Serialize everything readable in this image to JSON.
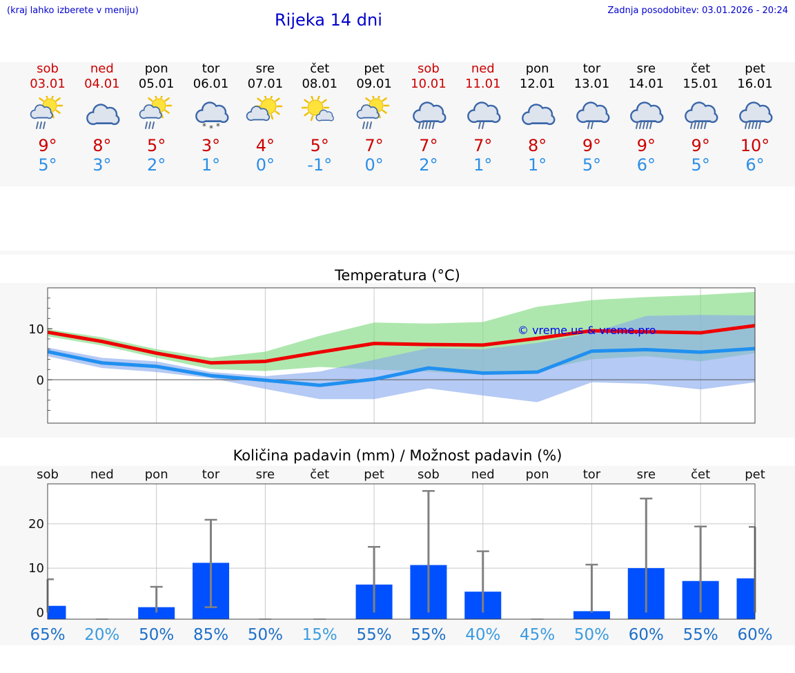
{
  "header": {
    "hint": "(kraj lahko izberete v meniju)",
    "title": "Rijeka 14 dni",
    "updated": "Zadnja posodobitev: 03.01.2026 - 20:24"
  },
  "colors": {
    "weekend": "#cc0000",
    "weekday": "#000000",
    "tmax": "#cc0000",
    "tmin": "#2b8ee6"
  },
  "days": [
    {
      "name": "sob",
      "date": "03.01",
      "weekend": true,
      "icon": "sun-cloud-rain",
      "tmax": "9°",
      "tmin": "5°"
    },
    {
      "name": "ned",
      "date": "04.01",
      "weekend": true,
      "icon": "cloud",
      "tmax": "8°",
      "tmin": "3°"
    },
    {
      "name": "pon",
      "date": "05.01",
      "weekend": false,
      "icon": "sun-cloud-rain",
      "tmax": "5°",
      "tmin": "2°"
    },
    {
      "name": "tor",
      "date": "06.01",
      "weekend": false,
      "icon": "cloud-snow",
      "tmax": "3°",
      "tmin": "1°"
    },
    {
      "name": "sre",
      "date": "07.01",
      "weekend": false,
      "icon": "sun-cloud",
      "tmax": "4°",
      "tmin": "0°"
    },
    {
      "name": "čet",
      "date": "08.01",
      "weekend": false,
      "icon": "sun-small-cloud",
      "tmax": "5°",
      "tmin": "-1°"
    },
    {
      "name": "pet",
      "date": "09.01",
      "weekend": false,
      "icon": "sun-cloud-rain",
      "tmax": "7°",
      "tmin": "0°"
    },
    {
      "name": "sob",
      "date": "10.01",
      "weekend": true,
      "icon": "cloud-heavy-rain",
      "tmax": "7°",
      "tmin": "2°"
    },
    {
      "name": "ned",
      "date": "11.01",
      "weekend": true,
      "icon": "cloud-rain",
      "tmax": "7°",
      "tmin": "1°"
    },
    {
      "name": "pon",
      "date": "12.01",
      "weekend": false,
      "icon": "cloud",
      "tmax": "8°",
      "tmin": "1°"
    },
    {
      "name": "tor",
      "date": "13.01",
      "weekend": false,
      "icon": "cloud-rain",
      "tmax": "9°",
      "tmin": "5°"
    },
    {
      "name": "sre",
      "date": "14.01",
      "weekend": false,
      "icon": "cloud-heavy-rain",
      "tmax": "9°",
      "tmin": "6°"
    },
    {
      "name": "čet",
      "date": "15.01",
      "weekend": false,
      "icon": "cloud-heavy-rain",
      "tmax": "9°",
      "tmin": "5°"
    },
    {
      "name": "pet",
      "date": "16.01",
      "weekend": false,
      "icon": "cloud-heavy-rain",
      "tmax": "10°",
      "tmin": "6°"
    }
  ],
  "chart_data": [
    {
      "type": "line",
      "title": "Temperatura (°C)",
      "watermark": "© vreme.us & vreme.pro",
      "ylim": [
        -8.5,
        18
      ],
      "yticks": [
        0,
        10
      ],
      "x": [
        0,
        1,
        2,
        3,
        4,
        5,
        6,
        7,
        8,
        9,
        10,
        11,
        12,
        13
      ],
      "series": [
        {
          "name": "max",
          "color": "#ee0000",
          "values": [
            9.3,
            7.5,
            5.2,
            3.3,
            3.6,
            5.4,
            7.1,
            6.9,
            6.8,
            8.1,
            9.6,
            9.4,
            9.2,
            10.6
          ]
        },
        {
          "name": "min",
          "color": "#2090f0",
          "values": [
            5.5,
            3.3,
            2.6,
            0.8,
            -0.1,
            -1.1,
            0.1,
            2.3,
            1.3,
            1.5,
            5.6,
            5.9,
            5.4,
            6.1
          ]
        }
      ],
      "bands": [
        {
          "name": "max-range",
          "color": "#7dd87d",
          "low": [
            8.5,
            6.7,
            4.3,
            2.1,
            1.7,
            2.5,
            2.0,
            1.6,
            1.0,
            1.8,
            4.0,
            4.6,
            3.6,
            5.2
          ],
          "high": [
            9.9,
            8.3,
            6.0,
            4.3,
            5.5,
            8.6,
            11.2,
            11.0,
            11.3,
            14.3,
            15.6,
            16.2,
            16.6,
            17.2
          ]
        },
        {
          "name": "min-range",
          "color": "#88aaee",
          "low": [
            4.6,
            2.3,
            1.5,
            0.3,
            -1.8,
            -3.8,
            -3.8,
            -1.7,
            -3.1,
            -4.4,
            -0.5,
            -0.8,
            -1.9,
            -0.5
          ],
          "high": [
            6.3,
            4.3,
            3.6,
            1.5,
            0.7,
            1.6,
            3.9,
            6.2,
            6.0,
            7.2,
            9.2,
            12.5,
            12.7,
            12.6
          ]
        }
      ]
    },
    {
      "type": "bar",
      "title": "Količina padavin (mm) / Možnost padavin (%)",
      "categories": [
        "sob",
        "ned",
        "pon",
        "tor",
        "sre",
        "čet",
        "pet",
        "sob",
        "ned",
        "pon",
        "tor",
        "sre",
        "čet",
        "pet"
      ],
      "ylim": [
        -1.5,
        29
      ],
      "yticks": [
        0,
        10,
        20
      ],
      "values": [
        1.5,
        0,
        1.2,
        11.2,
        0,
        0,
        6.3,
        10.7,
        4.7,
        0,
        0.3,
        10.0,
        7.1,
        7.7
      ],
      "error_high": [
        7.5,
        0,
        5.8,
        20.9,
        0,
        0,
        14.8,
        27.4,
        13.8,
        0,
        10.8,
        25.7,
        19.4,
        19.3
      ],
      "error_low": [
        0,
        0,
        0,
        1.2,
        0,
        0,
        0,
        0,
        0,
        0,
        0,
        0,
        0,
        0
      ],
      "bar_color": "#0050ff",
      "chance": [
        "65%",
        "20%",
        "50%",
        "85%",
        "50%",
        "15%",
        "55%",
        "55%",
        "40%",
        "45%",
        "50%",
        "60%",
        "55%",
        "60%"
      ],
      "chance_colors": [
        "#1d6fc9",
        "#3a9be0",
        "#1d6fc9",
        "#1d6fc9",
        "#1d6fc9",
        "#3a9be0",
        "#1d6fc9",
        "#1d6fc9",
        "#3a9be0",
        "#3a9be0",
        "#3a9be0",
        "#1d6fc9",
        "#1d6fc9",
        "#1d6fc9"
      ]
    }
  ]
}
